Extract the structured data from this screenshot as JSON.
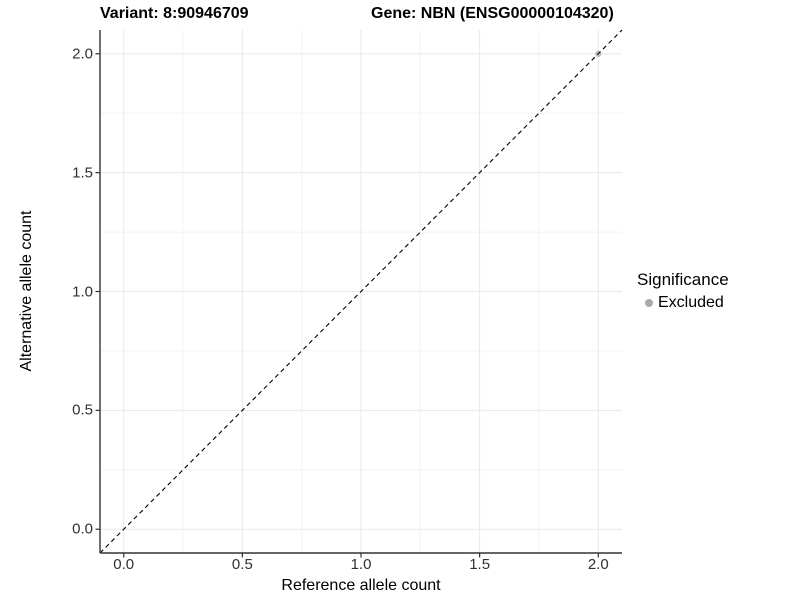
{
  "chart_data": {
    "type": "scatter",
    "title_variant": "Variant: 8:90946709",
    "title_gene": "Gene: NBN (ENSG00000104320)",
    "xlabel": "Reference allele count",
    "ylabel": "Alternative allele count",
    "xlim": [
      -0.1,
      2.1
    ],
    "ylim": [
      -0.1,
      2.1
    ],
    "x_ticks": [
      0.0,
      0.5,
      1.0,
      1.5,
      2.0
    ],
    "y_ticks": [
      0.0,
      0.5,
      1.0,
      1.5,
      2.0
    ],
    "x_minor_ticks": [
      0.25,
      0.75,
      1.25,
      1.75
    ],
    "y_minor_ticks": [
      0.25,
      0.75,
      1.25,
      1.75
    ],
    "grid": true,
    "identity_line": {
      "slope": 1,
      "intercept": 0,
      "style": "dashed",
      "color": "#000000"
    },
    "series": [
      {
        "name": "Excluded",
        "color": "#bdbdbd",
        "points": [
          {
            "x": 2.0,
            "y": 2.0
          }
        ]
      }
    ],
    "legend": {
      "title": "Significance",
      "position": "right",
      "items": [
        {
          "label": "Excluded",
          "color": "#aaaaaa"
        }
      ]
    }
  },
  "colors": {
    "background": "#ffffff",
    "grid_major": "#e8e8e8",
    "grid_minor": "#f3f3f3",
    "axis_line": "#333333",
    "tick_mark": "#333333",
    "tick_label": "#303030",
    "title_text": "#000000"
  }
}
